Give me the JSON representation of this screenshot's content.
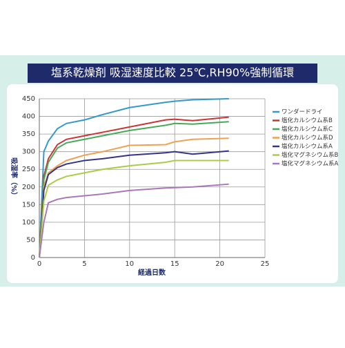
{
  "chart_data": {
    "type": "line",
    "title": "塩系乾燥剤 吸湿速度比較 25℃,RH90%強制循環",
    "xlabel": "経過日数",
    "ylabel": "吸湿率（%）",
    "x": [
      0,
      0.5,
      1,
      2,
      3,
      5,
      7,
      10,
      14,
      15,
      17,
      21
    ],
    "series": [
      {
        "name": "ワンダードライ",
        "color": "#3399cc",
        "values": [
          0,
          300,
          330,
          365,
          380,
          390,
          405,
          425,
          440,
          443,
          447,
          450
        ]
      },
      {
        "name": "塩化カルシウム系B",
        "color": "#cc3333",
        "values": [
          0,
          230,
          280,
          320,
          335,
          345,
          355,
          370,
          390,
          392,
          388,
          398
        ]
      },
      {
        "name": "塩化カルシウム系C",
        "color": "#44aa55",
        "values": [
          0,
          220,
          270,
          310,
          325,
          335,
          345,
          360,
          375,
          380,
          378,
          385
        ]
      },
      {
        "name": "塩化カルシウム系D",
        "color": "#f0a050",
        "values": [
          0,
          200,
          240,
          260,
          275,
          290,
          300,
          318,
          320,
          328,
          335,
          338
        ]
      },
      {
        "name": "塩化カルシウム系A",
        "color": "#333388",
        "values": [
          0,
          190,
          235,
          255,
          265,
          275,
          280,
          290,
          297,
          300,
          293,
          302
        ]
      },
      {
        "name": "塩化マグネシウム系B",
        "color": "#aacc44",
        "values": [
          0,
          160,
          205,
          220,
          230,
          240,
          250,
          260,
          270,
          275,
          275,
          275
        ]
      },
      {
        "name": "塩化マグネシウム系A",
        "color": "#aa77bb",
        "values": [
          0,
          100,
          155,
          165,
          170,
          175,
          180,
          190,
          197,
          198,
          200,
          208
        ]
      }
    ],
    "xlim": [
      0,
      25
    ],
    "xticks": [
      0,
      5,
      10,
      15,
      20,
      25
    ],
    "ylim": [
      0,
      450
    ],
    "yticks": [
      0,
      50,
      100,
      150,
      200,
      250,
      300,
      350,
      400,
      450
    ],
    "grid": true,
    "legend": "right"
  }
}
